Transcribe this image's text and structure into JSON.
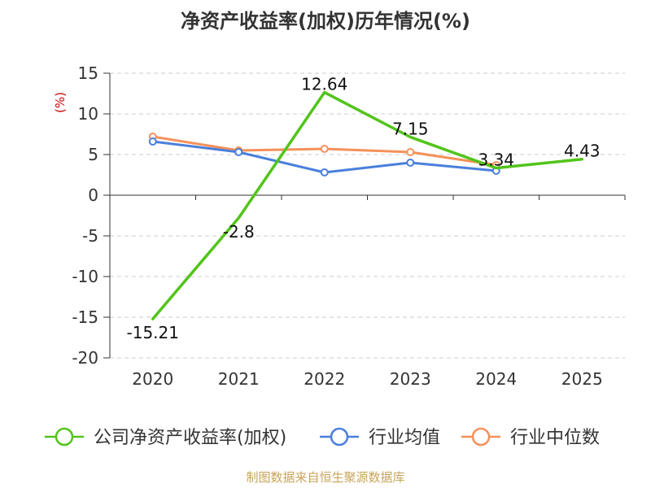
{
  "chart_data": {
    "type": "line",
    "title": "净资产收益率(加权)历年情况(%)",
    "ylabel": "(%)",
    "xlabel": "",
    "categories": [
      "2020",
      "2021",
      "2022",
      "2023",
      "2024",
      "2025"
    ],
    "ylim": [
      -20,
      15
    ],
    "yticks": [
      15,
      10,
      5,
      0,
      -5,
      -10,
      -15,
      -20
    ],
    "grid": true,
    "legend_position": "bottom",
    "series": [
      {
        "name": "公司净资产收益率(加权)",
        "color": "#52c41a",
        "values": [
          -15.21,
          -2.8,
          12.64,
          7.15,
          3.34,
          4.43
        ],
        "labels": [
          "-15.21",
          "-2.8",
          "12.64",
          "7.15",
          "3.34",
          "4.43"
        ],
        "markers": false
      },
      {
        "name": "行业均值",
        "color": "#4a7fdc",
        "values": [
          6.6,
          5.3,
          2.8,
          4.0,
          3.0,
          null
        ],
        "markers": true
      },
      {
        "name": "行业中位数",
        "color": "#f4915a",
        "values": [
          7.2,
          5.5,
          5.7,
          5.3,
          3.7,
          null
        ],
        "markers": true
      }
    ]
  },
  "colors": {
    "axis": "#333333",
    "grid": "#cccccc",
    "ylabel": "#cc0000",
    "source": "#c8a45a"
  },
  "footer": {
    "source": "制图数据来自恒生聚源数据库"
  }
}
